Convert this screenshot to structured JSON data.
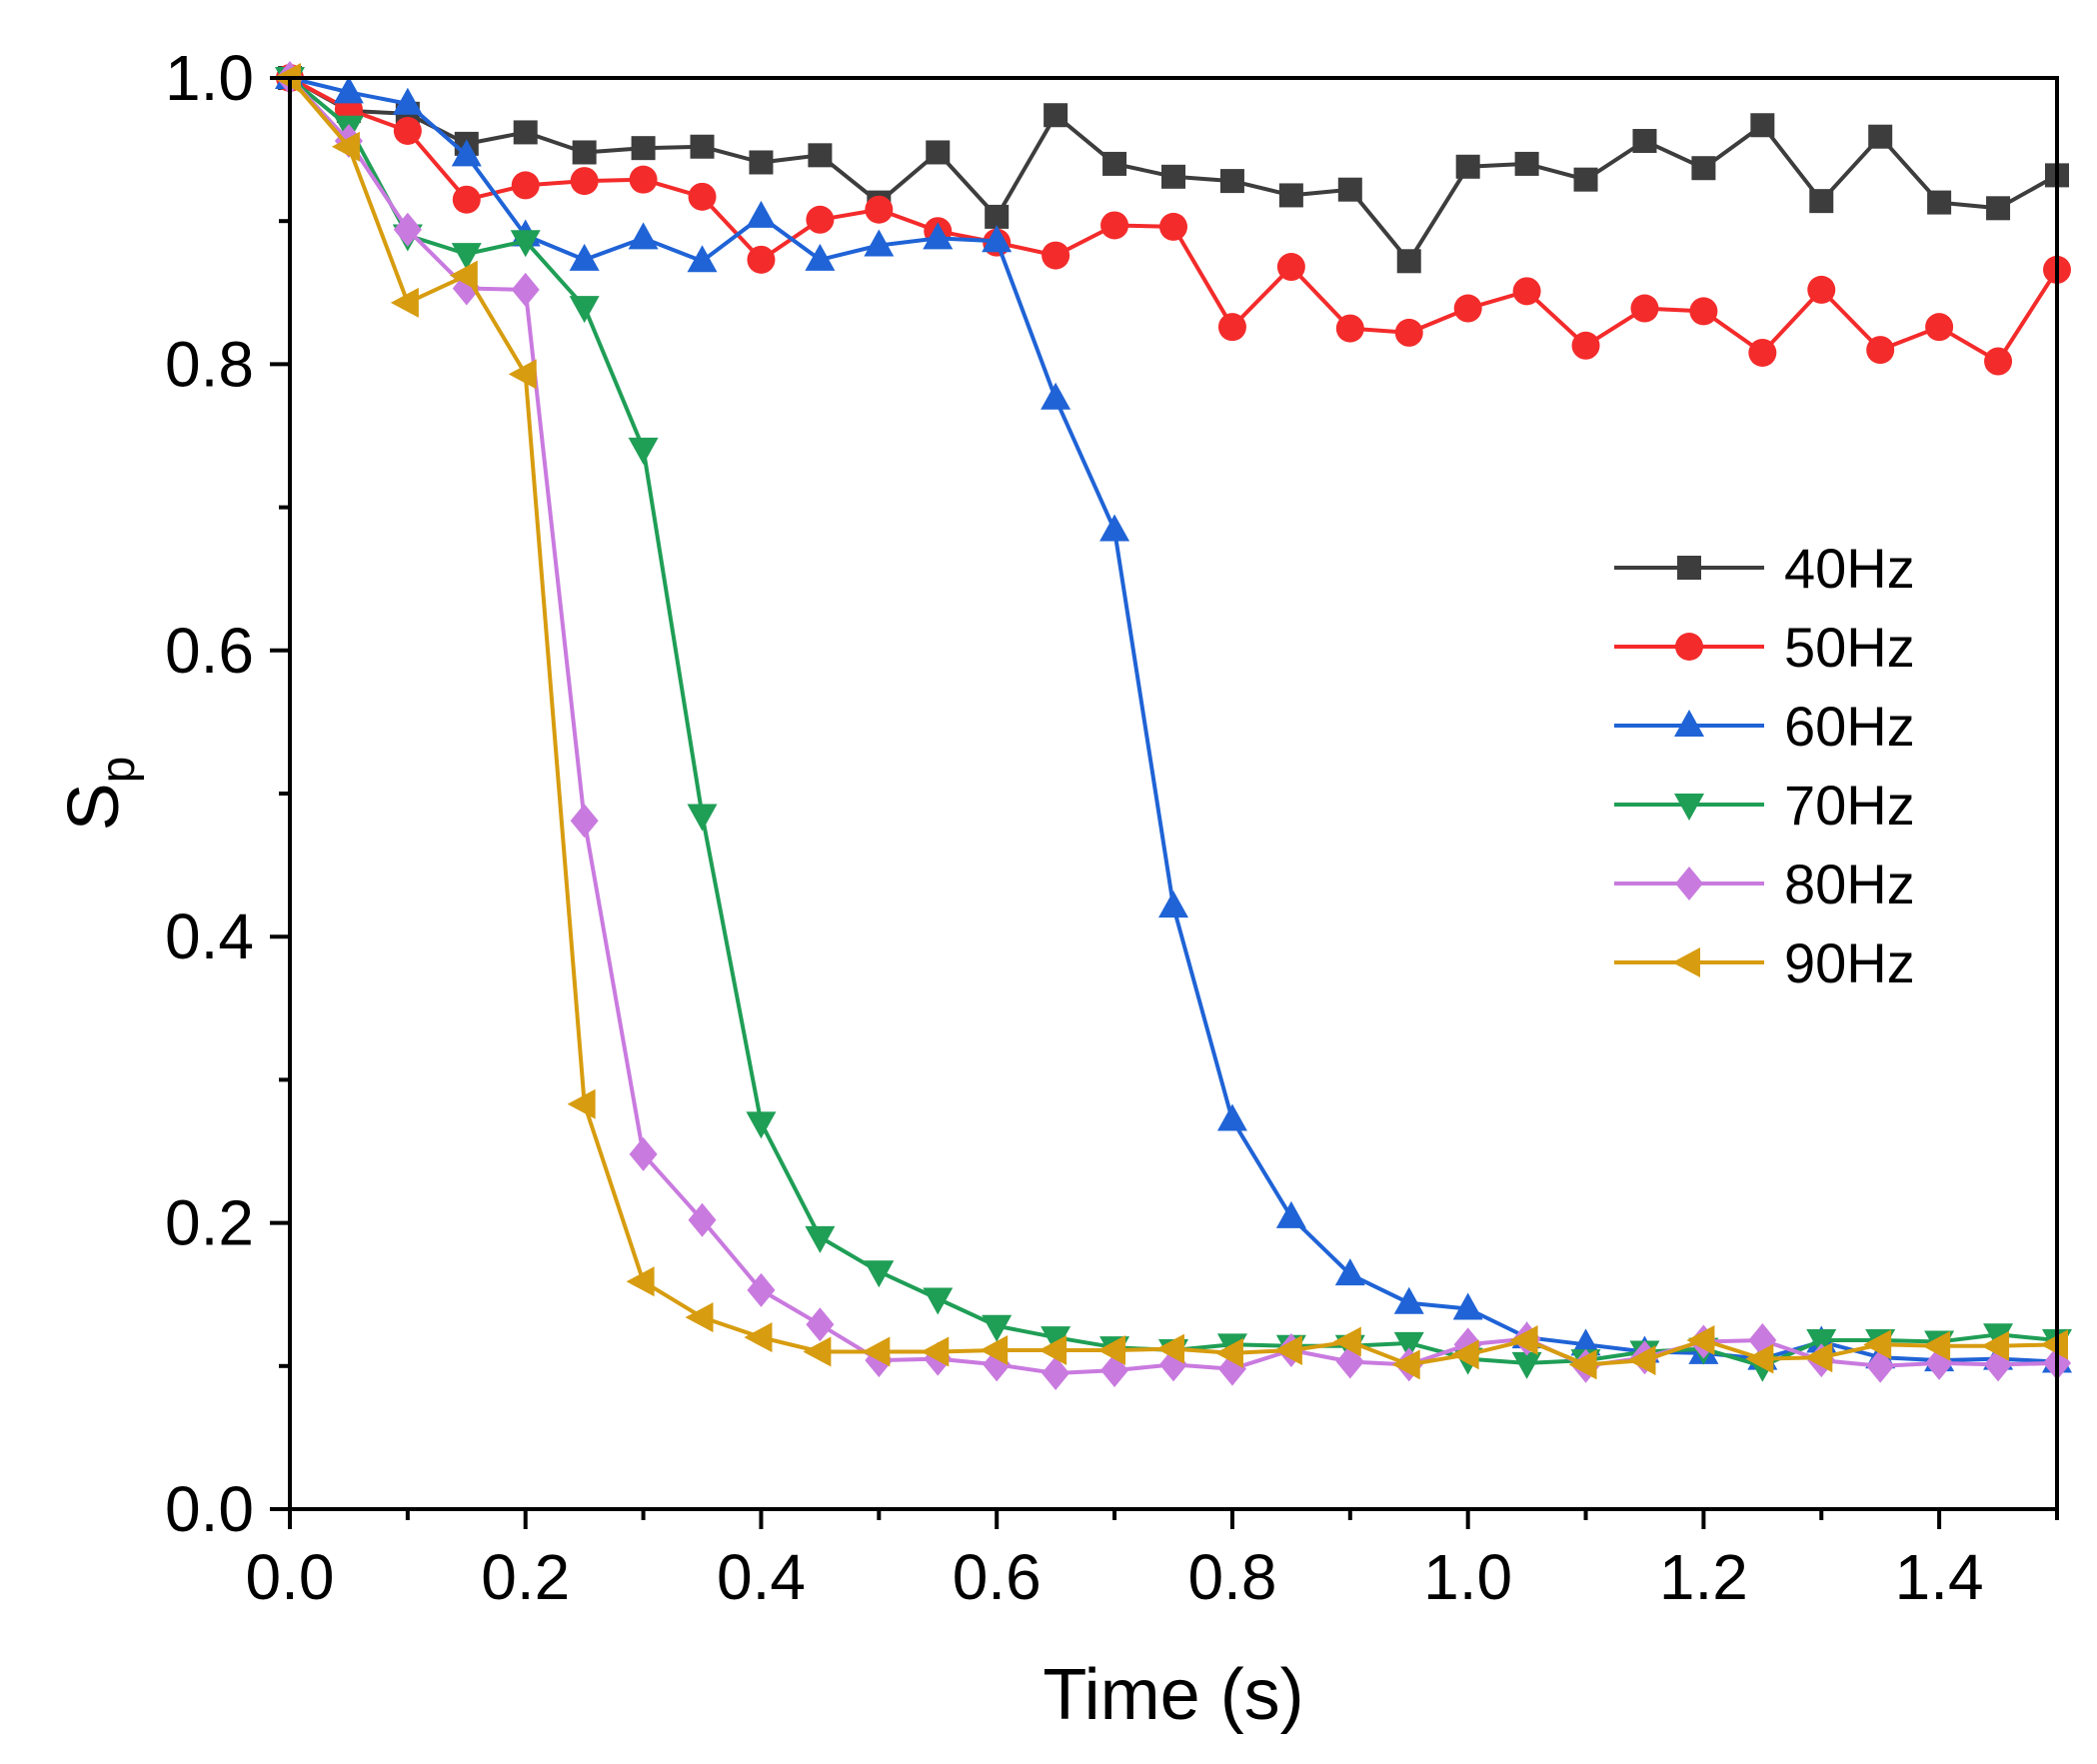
{
  "chart_data": {
    "type": "line",
    "title": "",
    "xlabel": "Time (s)",
    "ylabel": "S",
    "ylabel_subscript": "p",
    "xlim": [
      0,
      1.5
    ],
    "ylim": [
      0,
      1.0
    ],
    "x_ticks": [
      "0.0",
      "0.2",
      "0.4",
      "0.6",
      "0.8",
      "1.0",
      "1.2",
      "1.4"
    ],
    "y_ticks": [
      "0.0",
      "0.2",
      "0.4",
      "0.6",
      "0.8",
      "1.0"
    ],
    "legend_position": "right",
    "grid": false,
    "x": [
      0,
      0.05,
      0.1,
      0.15,
      0.2,
      0.25,
      0.3,
      0.35,
      0.4,
      0.45,
      0.5,
      0.55,
      0.6,
      0.65,
      0.7,
      0.75,
      0.8,
      0.85,
      0.9,
      0.95,
      1.0,
      1.05,
      1.1,
      1.15,
      1.2,
      1.25,
      1.3,
      1.35,
      1.4,
      1.45,
      1.5
    ],
    "series": [
      {
        "name": "40Hz",
        "color": "#3d3d3d",
        "marker": "square",
        "values": [
          1.0,
          0.977,
          0.975,
          0.954,
          0.962,
          0.948,
          0.951,
          0.952,
          0.941,
          0.946,
          0.913,
          0.948,
          0.903,
          0.974,
          0.94,
          0.931,
          0.928,
          0.918,
          0.922,
          0.872,
          0.938,
          0.94,
          0.929,
          0.956,
          0.937,
          0.967,
          0.914,
          0.959,
          0.913,
          0.909,
          0.932
        ]
      },
      {
        "name": "50Hz",
        "color": "#f42b2b",
        "marker": "circle",
        "values": [
          1.0,
          0.978,
          0.963,
          0.915,
          0.925,
          0.928,
          0.929,
          0.917,
          0.873,
          0.901,
          0.908,
          0.893,
          0.885,
          0.876,
          0.897,
          0.896,
          0.826,
          0.868,
          0.825,
          0.822,
          0.839,
          0.851,
          0.813,
          0.839,
          0.837,
          0.808,
          0.852,
          0.81,
          0.826,
          0.802,
          0.866
        ]
      },
      {
        "name": "60Hz",
        "color": "#1f63d6",
        "marker": "triangle-up",
        "values": [
          1.0,
          0.99,
          0.982,
          0.946,
          0.89,
          0.873,
          0.888,
          0.872,
          0.903,
          0.873,
          0.883,
          0.888,
          0.886,
          0.776,
          0.684,
          0.421,
          0.272,
          0.204,
          0.164,
          0.144,
          0.14,
          0.12,
          0.115,
          0.11,
          0.109,
          0.105,
          0.117,
          0.106,
          0.104,
          0.105,
          0.103
        ]
      },
      {
        "name": "70Hz",
        "color": "#1f9e56",
        "marker": "triangle-down",
        "values": [
          1.0,
          0.966,
          0.89,
          0.877,
          0.886,
          0.84,
          0.741,
          0.485,
          0.27,
          0.19,
          0.166,
          0.147,
          0.128,
          0.12,
          0.113,
          0.111,
          0.115,
          0.114,
          0.114,
          0.116,
          0.105,
          0.102,
          0.104,
          0.11,
          0.112,
          0.1,
          0.118,
          0.118,
          0.117,
          0.122,
          0.118
        ]
      },
      {
        "name": "80Hz",
        "color": "#c97adf",
        "marker": "diamond",
        "values": [
          1.0,
          0.956,
          0.894,
          0.853,
          0.852,
          0.481,
          0.248,
          0.202,
          0.153,
          0.129,
          0.104,
          0.105,
          0.101,
          0.095,
          0.097,
          0.101,
          0.098,
          0.111,
          0.103,
          0.101,
          0.115,
          0.119,
          0.1,
          0.106,
          0.117,
          0.118,
          0.104,
          0.1,
          0.102,
          0.101,
          0.102
        ]
      },
      {
        "name": "90Hz",
        "color": "#d79c0f",
        "marker": "triangle-left",
        "values": [
          1.0,
          0.952,
          0.843,
          0.862,
          0.793,
          0.283,
          0.159,
          0.134,
          0.12,
          0.11,
          0.11,
          0.11,
          0.111,
          0.111,
          0.111,
          0.112,
          0.109,
          0.111,
          0.117,
          0.101,
          0.108,
          0.118,
          0.101,
          0.104,
          0.118,
          0.105,
          0.106,
          0.115,
          0.114,
          0.114,
          0.115
        ]
      }
    ]
  }
}
